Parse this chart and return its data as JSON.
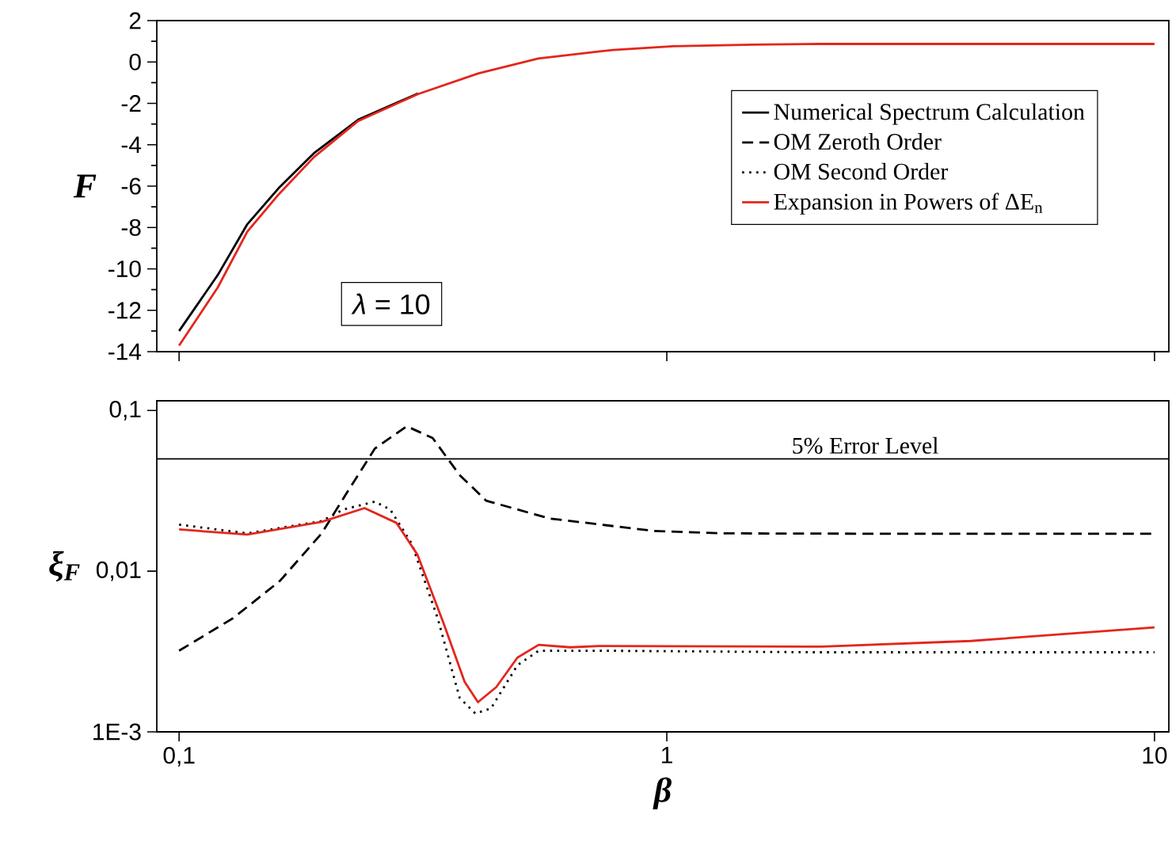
{
  "chart_data": [
    {
      "type": "line",
      "ylabel": "F",
      "log": "x",
      "xlim": [
        0.09,
        10.7
      ],
      "ylim": [
        -14,
        2
      ],
      "xticks": [
        {
          "value": 0.1,
          "label": null
        },
        {
          "value": 1,
          "label": null
        },
        {
          "value": 10,
          "label": null
        }
      ],
      "yticks": [
        -14,
        -12,
        -10,
        -8,
        -6,
        -4,
        -2,
        0,
        2
      ],
      "tick_labels": "y",
      "legend": "right",
      "annotations": [
        "*λ* = 10"
      ],
      "series": [
        {
          "name": "Numerical Spectrum Calculation",
          "color": "#000000",
          "line_style": "solid",
          "x": [
            0.1,
            0.12,
            0.138,
            0.16,
            0.189,
            0.233,
            0.309
          ],
          "values": [
            -13.0,
            -10.3,
            -7.84,
            -6.1,
            -4.41,
            -2.79,
            -1.52
          ]
        },
        {
          "name": "OM Zeroth Order",
          "color": "#000000",
          "line_style": "dashed"
        },
        {
          "name": "OM Second Order",
          "color": "#000000",
          "line_style": "dotted"
        },
        {
          "name": "Expansion in Powers of ΔE$_{n}$",
          "color": "#e3261c",
          "line_style": "solid",
          "x": [
            0.1,
            0.12,
            0.138,
            0.16,
            0.189,
            0.233,
            0.309,
            0.411,
            0.545,
            0.775,
            1.03,
            1.5,
            2.08,
            4,
            10
          ],
          "values": [
            -13.7,
            -10.9,
            -8.2,
            -6.4,
            -4.6,
            -2.85,
            -1.55,
            -0.55,
            0.17,
            0.58,
            0.76,
            0.84,
            0.87,
            0.87,
            0.87
          ]
        }
      ]
    },
    {
      "type": "line",
      "xlabel": "β",
      "ylabel": "ξ$_{F}$",
      "log": "xy",
      "xlim": [
        0.09,
        10.7
      ],
      "ylim": [
        0.001,
        0.115
      ],
      "xticks": [
        {
          "value": 0.1,
          "label": "0,1"
        },
        {
          "value": 1,
          "label": "1"
        },
        {
          "value": 10,
          "label": "10"
        }
      ],
      "yticks": [
        {
          "value": 0.001,
          "label": "1E-3"
        },
        {
          "value": 0.01,
          "label": "0,01"
        },
        {
          "value": 0.1,
          "label": "0,1"
        }
      ],
      "ref_lines": [
        {
          "axis": "y",
          "value": 0.05,
          "label": "5% Error Level",
          "color": "#000000"
        }
      ],
      "series": [
        {
          "color": "#000000",
          "line_style": "dashed",
          "x": [
            0.1,
            0.129,
            0.161,
            0.196,
            0.222,
            0.252,
            0.293,
            0.331,
            0.376,
            0.426,
            0.574,
            0.942,
            1.3,
            3,
            10
          ],
          "values": [
            0.0032,
            0.0051,
            0.0087,
            0.0172,
            0.0316,
            0.058,
            0.0798,
            0.0675,
            0.0397,
            0.0275,
            0.0213,
            0.0178,
            0.0172,
            0.0171,
            0.0171
          ]
        },
        {
          "color": "#000000",
          "line_style": "dotted",
          "x": [
            0.1,
            0.138,
            0.196,
            0.217,
            0.252,
            0.271,
            0.3,
            0.339,
            0.376,
            0.405,
            0.436,
            0.494,
            0.546,
            0.727,
            2,
            10
          ],
          "values": [
            0.0195,
            0.0172,
            0.0205,
            0.0242,
            0.0271,
            0.0242,
            0.0148,
            0.0051,
            0.00163,
            0.0013,
            0.0014,
            0.0026,
            0.0032,
            0.0032,
            0.00313,
            0.00313
          ]
        },
        {
          "color": "#e3261c",
          "line_style": "solid",
          "x": [
            0.1,
            0.138,
            0.196,
            0.24,
            0.279,
            0.308,
            0.349,
            0.385,
            0.41,
            0.447,
            0.494,
            0.546,
            0.634,
            0.727,
            2.08,
            4.2,
            10
          ],
          "values": [
            0.0182,
            0.0169,
            0.0203,
            0.0247,
            0.02,
            0.0127,
            0.0047,
            0.00205,
            0.00153,
            0.0019,
            0.0029,
            0.00348,
            0.00336,
            0.00342,
            0.00339,
            0.00368,
            0.00447
          ]
        }
      ]
    }
  ]
}
